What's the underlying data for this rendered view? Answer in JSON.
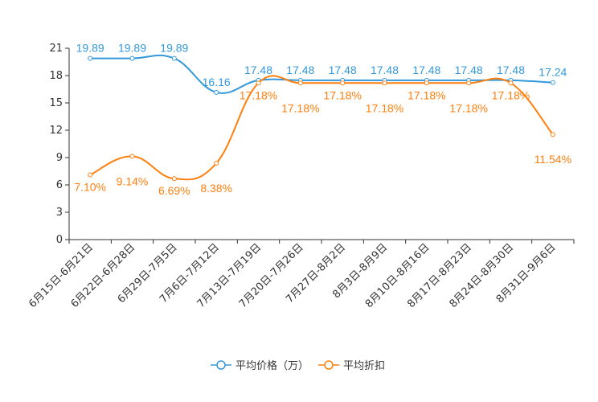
{
  "chart_data": {
    "type": "line",
    "title": "",
    "xlabel": "",
    "ylabel": "",
    "ylim": [
      0,
      21
    ],
    "yticks": [
      0,
      3,
      6,
      9,
      12,
      15,
      18,
      21
    ],
    "grid": false,
    "legend_position": "bottom-center",
    "categories": [
      "6月15日-6月21日",
      "6月22日-6月28日",
      "6月29日-7月5日",
      "7月6日-7月12日",
      "7月13日-7月19日",
      "7月20日-7月26日",
      "7月27日-8月2日",
      "8月3日-8月9日",
      "8月10日-8月16日",
      "8月17日-8月23日",
      "8月24日-8月30日",
      "8月31日-9月6日"
    ],
    "series": [
      {
        "name": "平均价格（万）",
        "color": "#3398DB",
        "suffix": "",
        "values": [
          19.89,
          19.89,
          19.89,
          16.16,
          17.48,
          17.48,
          17.48,
          17.48,
          17.48,
          17.48,
          17.48,
          17.24
        ]
      },
      {
        "name": "平均折扣",
        "color": "#FF7F0E",
        "suffix": "%",
        "values": [
          7.1,
          9.14,
          6.69,
          8.38,
          17.18,
          17.18,
          17.18,
          17.18,
          17.18,
          17.18,
          17.18,
          11.54
        ]
      }
    ]
  }
}
